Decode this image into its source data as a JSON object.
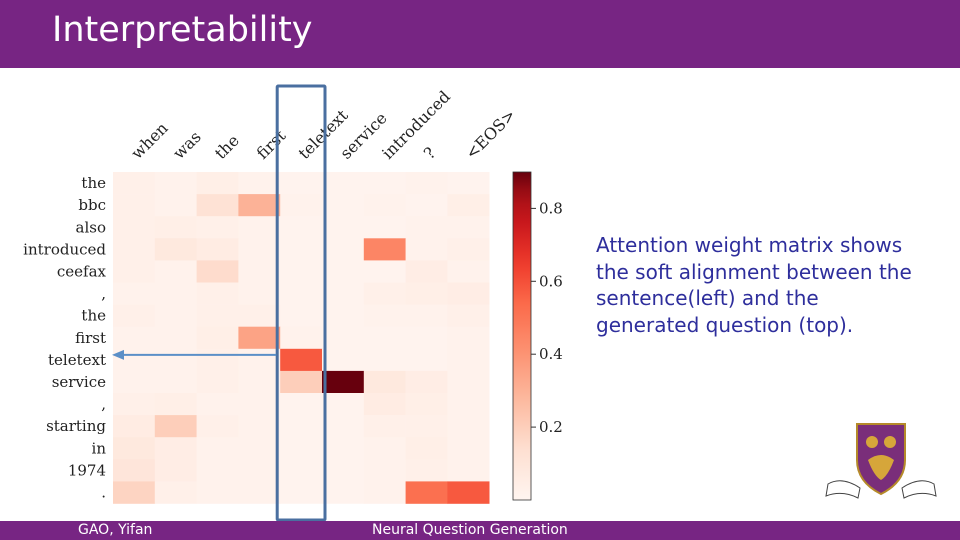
{
  "slide": {
    "title": "Interpretability",
    "caption": "Attention weight matrix shows the soft alignment between the sentence(left) and the generated question (top).",
    "footer_left": "GAO, Yifan",
    "footer_center": "Neural Question Generation",
    "colors": {
      "header_bg": "#772583",
      "caption_text": "#2e2e9c",
      "highlight_box": "#4a6fa0",
      "arrow": "#5b8fc7"
    },
    "icons": [
      "university-crest-logo"
    ]
  },
  "chart_data": {
    "type": "heatmap",
    "title": "",
    "x": [
      "when",
      "was",
      "the",
      "first",
      "teletext",
      "service",
      "introduced",
      "?",
      "<EOS>"
    ],
    "y": [
      "the",
      "bbc",
      "also",
      "introduced",
      "ceefax",
      ",",
      "the",
      "first",
      "teletext",
      "service",
      ",",
      "starting",
      "in",
      "1974",
      "."
    ],
    "values": [
      [
        0.03,
        0.02,
        0.04,
        0.02,
        0.01,
        0.01,
        0.01,
        0.02,
        0.01
      ],
      [
        0.03,
        0.02,
        0.12,
        0.3,
        0.02,
        0.01,
        0.02,
        0.01,
        0.04
      ],
      [
        0.03,
        0.04,
        0.03,
        0.02,
        0.01,
        0.01,
        0.01,
        0.02,
        0.02
      ],
      [
        0.03,
        0.08,
        0.06,
        0.02,
        0.01,
        0.01,
        0.45,
        0.02,
        0.03
      ],
      [
        0.03,
        0.02,
        0.15,
        0.02,
        0.01,
        0.01,
        0.01,
        0.05,
        0.02
      ],
      [
        0.02,
        0.02,
        0.03,
        0.02,
        0.01,
        0.01,
        0.03,
        0.04,
        0.05
      ],
      [
        0.03,
        0.02,
        0.03,
        0.03,
        0.01,
        0.01,
        0.02,
        0.02,
        0.03
      ],
      [
        0.02,
        0.02,
        0.04,
        0.35,
        0.02,
        0.01,
        0.01,
        0.01,
        0.02
      ],
      [
        0.02,
        0.02,
        0.03,
        0.02,
        0.58,
        0.01,
        0.01,
        0.01,
        0.02
      ],
      [
        0.02,
        0.02,
        0.03,
        0.02,
        0.2,
        0.92,
        0.08,
        0.05,
        0.02
      ],
      [
        0.03,
        0.04,
        0.02,
        0.02,
        0.01,
        0.01,
        0.06,
        0.04,
        0.02
      ],
      [
        0.06,
        0.2,
        0.03,
        0.02,
        0.01,
        0.01,
        0.03,
        0.03,
        0.02
      ],
      [
        0.08,
        0.05,
        0.02,
        0.02,
        0.01,
        0.01,
        0.02,
        0.04,
        0.02
      ],
      [
        0.1,
        0.05,
        0.02,
        0.02,
        0.01,
        0.01,
        0.02,
        0.03,
        0.02
      ],
      [
        0.18,
        0.03,
        0.02,
        0.02,
        0.01,
        0.01,
        0.02,
        0.52,
        0.58
      ]
    ],
    "colorbar": {
      "min": 0.0,
      "max": 0.9,
      "ticks": [
        0.2,
        0.4,
        0.6,
        0.8
      ],
      "tick_labels": [
        "0.2",
        "0.4",
        "0.6",
        "0.8"
      ]
    },
    "highlight": {
      "column": "teletext",
      "row": "teletext"
    },
    "legend": "none",
    "grid": false
  }
}
